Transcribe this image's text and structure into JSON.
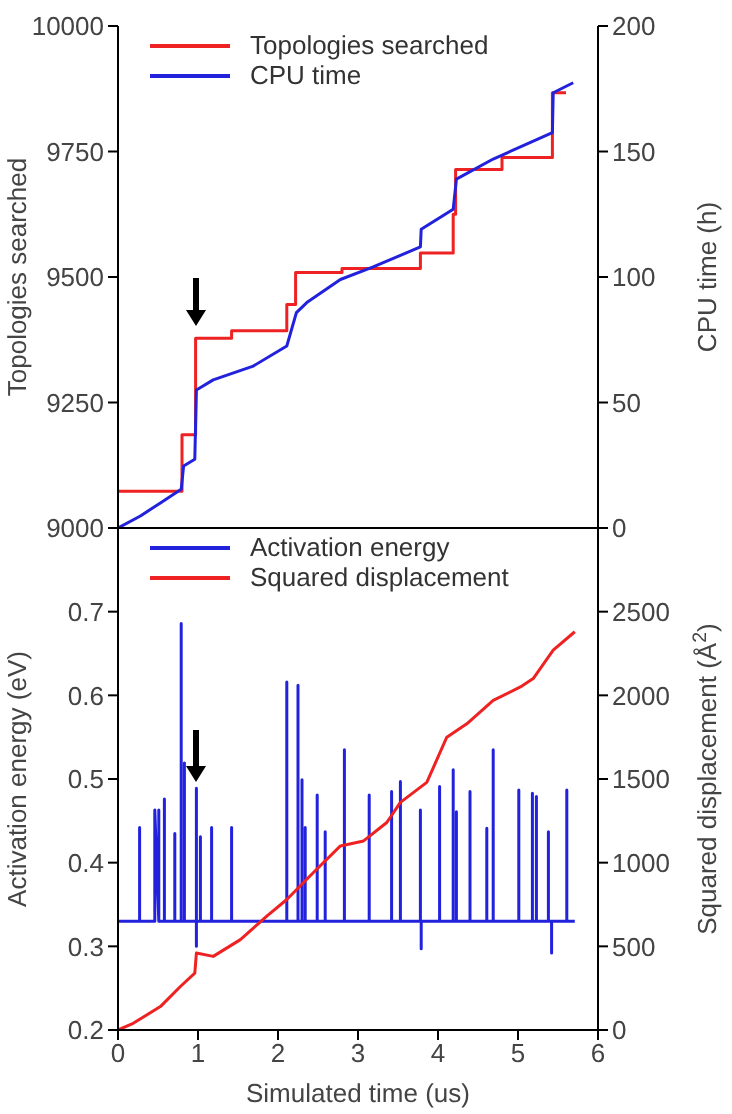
{
  "chart_data": [
    {
      "type": "line",
      "ylabel": "Topologies searched",
      "y2label": "CPU time (h)",
      "xlim": [
        0,
        6
      ],
      "xticks": [
        0,
        1,
        2,
        3,
        4,
        5,
        6
      ],
      "ylim": [
        9000,
        10000
      ],
      "yticks": [
        9000,
        9250,
        9500,
        9750,
        10000
      ],
      "y2lim": [
        0,
        200
      ],
      "y2ticks": [
        0,
        50,
        100,
        150,
        200
      ],
      "tick_labels": "y",
      "legend": "top left",
      "grid": false,
      "series": [
        {
          "name": "Topologies searched",
          "type": "step",
          "color": "#ee2222",
          "x": [
            0,
            0.8,
            0.97,
            1.42,
            2.11,
            2.22,
            2.8,
            3.78,
            4.19,
            4.22,
            4.8,
            5.43,
            5.6
          ],
          "values": [
            9073,
            9186,
            9378,
            9393,
            9445,
            9509,
            9517,
            9548,
            9625,
            9714,
            9738,
            9867,
            9867
          ]
        },
        {
          "name": "CPU time",
          "type": "line",
          "axis": "y2",
          "color": "#2222dd",
          "x": [
            0,
            0.28,
            0.53,
            0.79,
            0.82,
            0.96,
            0.98,
            1.19,
            1.69,
            2.11,
            2.23,
            2.36,
            2.78,
            3.19,
            3.78,
            3.79,
            4.19,
            4.23,
            4.69,
            5.43,
            5.44,
            5.69
          ],
          "values": [
            0,
            4.8,
            10,
            15.4,
            24.7,
            27.4,
            55,
            59,
            64.5,
            72.5,
            85.8,
            89.8,
            99,
            104,
            112,
            119,
            127,
            139,
            147,
            157.5,
            173.4,
            177.4
          ]
        }
      ]
    },
    {
      "type": "line",
      "xlabel": "Simulated time (us)",
      "ylabel": "Activation energy (eV)",
      "y2label": "Squared displacement (Å$^{2}$)",
      "xlim": [
        0,
        6
      ],
      "xticks": [
        0,
        1,
        2,
        3,
        4,
        5,
        6
      ],
      "ylim": [
        0.2,
        0.8
      ],
      "yticks": [
        0.2,
        0.3,
        0.4,
        0.5,
        0.6,
        0.7
      ],
      "y2lim": [
        0,
        3000
      ],
      "y2ticks": [
        0,
        500,
        1000,
        1500,
        2000,
        2500
      ],
      "legend": "top left",
      "grid": false,
      "series": [
        {
          "name": "Activation energy",
          "type": "line",
          "color": "#2222dd",
          "x": [
            0,
            0.27,
            0.27,
            0.27,
            0.46,
            0.46,
            0.46,
            0.46,
            0.51,
            0.51,
            0.51,
            0.58,
            0.58,
            0.58,
            0.71,
            0.71,
            0.71,
            0.79,
            0.79,
            0.79,
            0.83,
            0.83,
            0.83,
            0.98,
            0.98,
            0.98,
            0.98,
            1.03,
            1.03,
            1.03,
            1.17,
            1.17,
            1.17,
            1.42,
            1.42,
            1.42,
            2.11,
            2.11,
            2.11,
            2.25,
            2.25,
            2.25,
            2.3,
            2.3,
            2.3,
            2.34,
            2.34,
            2.34,
            2.49,
            2.49,
            2.49,
            2.59,
            2.59,
            2.59,
            2.83,
            2.83,
            2.83,
            3.14,
            3.14,
            3.14,
            3.42,
            3.42,
            3.42,
            3.53,
            3.53,
            3.53,
            3.78,
            3.78,
            3.78,
            3.79,
            3.79,
            3.79,
            4.02,
            4.02,
            4.02,
            4.19,
            4.19,
            4.19,
            4.23,
            4.23,
            4.23,
            4.4,
            4.4,
            4.4,
            4.61,
            4.61,
            4.61,
            4.69,
            4.69,
            4.69,
            5.01,
            5.01,
            5.01,
            5.18,
            5.18,
            5.18,
            5.23,
            5.23,
            5.23,
            5.38,
            5.38,
            5.38,
            5.42,
            5.42,
            5.42,
            5.61,
            5.61,
            5.61,
            5.71
          ],
          "values": [
            0.33,
            0.33,
            0.442,
            0.33,
            0.33,
            0.461,
            0.33,
            0.463,
            0.33,
            0.463,
            0.33,
            0.33,
            0.476,
            0.33,
            0.33,
            0.435,
            0.33,
            0.33,
            0.686,
            0.33,
            0.33,
            0.519,
            0.33,
            0.33,
            0.489,
            0.3,
            0.33,
            0.33,
            0.431,
            0.33,
            0.33,
            0.442,
            0.33,
            0.33,
            0.442,
            0.33,
            0.33,
            0.616,
            0.33,
            0.33,
            0.612,
            0.33,
            0.33,
            0.499,
            0.33,
            0.33,
            0.442,
            0.33,
            0.33,
            0.481,
            0.33,
            0.33,
            0.437,
            0.33,
            0.33,
            0.535,
            0.33,
            0.33,
            0.481,
            0.33,
            0.33,
            0.485,
            0.33,
            0.33,
            0.497,
            0.33,
            0.33,
            0.463,
            0.33,
            0.33,
            0.297,
            0.33,
            0.33,
            0.491,
            0.33,
            0.33,
            0.511,
            0.33,
            0.33,
            0.461,
            0.33,
            0.33,
            0.485,
            0.33,
            0.33,
            0.441,
            0.33,
            0.33,
            0.535,
            0.33,
            0.33,
            0.487,
            0.33,
            0.33,
            0.483,
            0.33,
            0.33,
            0.479,
            0.33,
            0.33,
            0.437,
            0.33,
            0.33,
            0.292,
            0.33,
            0.33,
            0.487,
            0.33,
            0.33
          ]
        },
        {
          "name": "Squared displacement",
          "type": "line",
          "axis": "y2",
          "color": "#ee2222",
          "x": [
            0,
            0.19,
            0.53,
            0.78,
            0.96,
            0.98,
            1.19,
            1.53,
            1.86,
            2.11,
            2.44,
            2.78,
            3.07,
            3.36,
            3.53,
            3.86,
            4.11,
            4.36,
            4.69,
            5.03,
            5.19,
            5.44,
            5.71
          ],
          "values": [
            0,
            40,
            140,
            260,
            340,
            460,
            440,
            540,
            680,
            780,
            940,
            1100,
            1130,
            1240,
            1360,
            1480,
            1750,
            1830,
            1970,
            2050,
            2100,
            2270,
            2380
          ]
        }
      ]
    }
  ]
}
